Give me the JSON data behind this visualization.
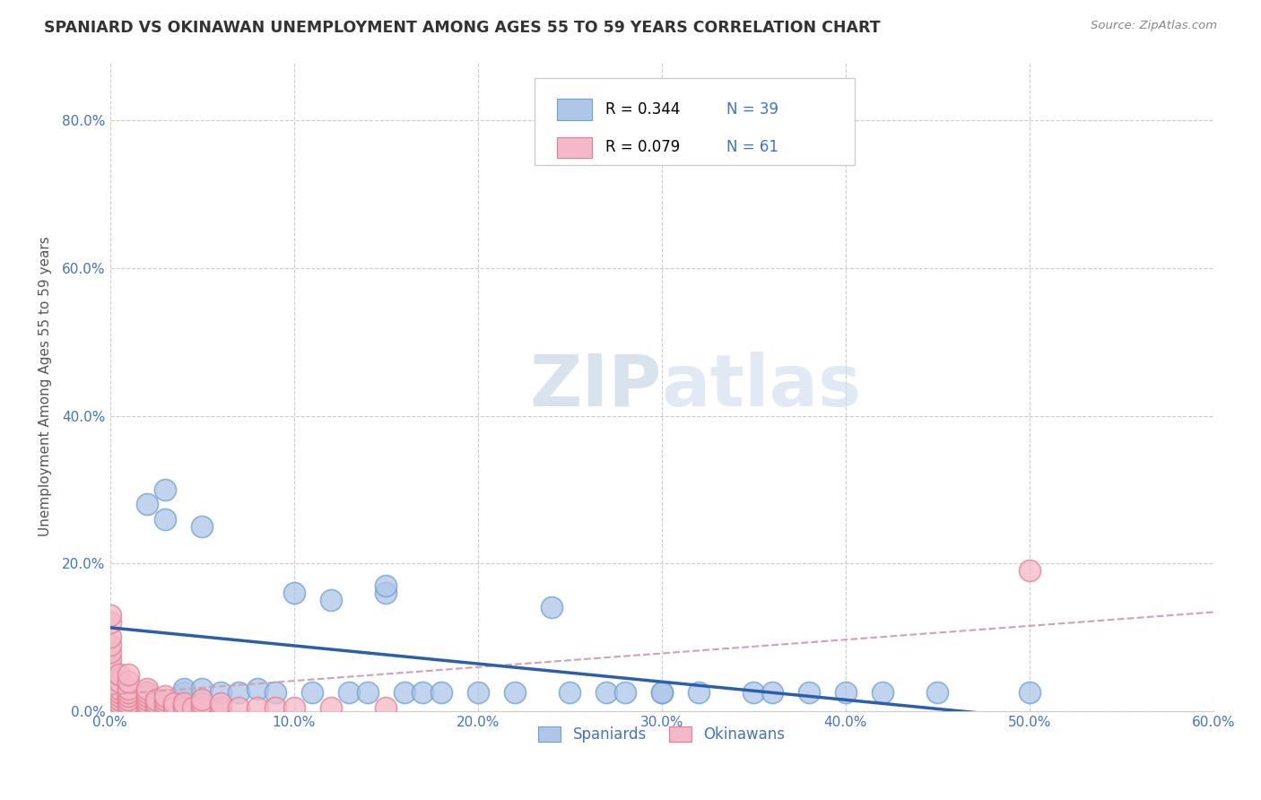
{
  "title": "SPANIARD VS OKINAWAN UNEMPLOYMENT AMONG AGES 55 TO 59 YEARS CORRELATION CHART",
  "source": "Source: ZipAtlas.com",
  "ylabel": "Unemployment Among Ages 55 to 59 years",
  "xlim": [
    0.0,
    0.6
  ],
  "ylim": [
    0.0,
    0.88
  ],
  "spaniards_R": 0.344,
  "spaniards_N": 39,
  "okinawans_R": 0.079,
  "okinawans_N": 61,
  "spaniard_color": "#aec6e8",
  "okinawan_color": "#f4b8c8",
  "spaniard_edge_color": "#6b9fd4",
  "okinawan_edge_color": "#e08090",
  "spaniard_line_color": "#2b5fad",
  "okinawan_line_color": "#d4a0b0",
  "legend_label_spaniards": "Spaniards",
  "legend_label_okinawans": "Okinawans",
  "background_color": "#ffffff",
  "grid_color": "#cccccc",
  "title_color": "#333333",
  "axis_label_color": "#555555",
  "tick_color": "#4472c4",
  "r_n_color": "#4472c4",
  "spaniards_x": [
    0.01,
    0.02,
    0.02,
    0.03,
    0.03,
    0.04,
    0.04,
    0.05,
    0.05,
    0.06,
    0.07,
    0.08,
    0.09,
    0.1,
    0.11,
    0.12,
    0.13,
    0.14,
    0.15,
    0.15,
    0.16,
    0.17,
    0.18,
    0.2,
    0.22,
    0.24,
    0.25,
    0.27,
    0.28,
    0.3,
    0.3,
    0.32,
    0.35,
    0.36,
    0.38,
    0.4,
    0.42,
    0.45,
    0.5
  ],
  "spaniards_y": [
    0.02,
    0.025,
    0.28,
    0.26,
    0.3,
    0.025,
    0.03,
    0.03,
    0.25,
    0.025,
    0.025,
    0.03,
    0.025,
    0.16,
    0.025,
    0.15,
    0.025,
    0.025,
    0.16,
    0.17,
    0.025,
    0.025,
    0.025,
    0.025,
    0.025,
    0.14,
    0.025,
    0.025,
    0.025,
    0.025,
    0.025,
    0.025,
    0.025,
    0.025,
    0.025,
    0.025,
    0.025,
    0.025,
    0.025
  ],
  "okinawans_x": [
    0.0,
    0.0,
    0.0,
    0.0,
    0.0,
    0.0,
    0.0,
    0.0,
    0.0,
    0.0,
    0.0,
    0.0,
    0.0,
    0.0,
    0.0,
    0.005,
    0.005,
    0.005,
    0.005,
    0.005,
    0.005,
    0.005,
    0.005,
    0.01,
    0.01,
    0.01,
    0.01,
    0.01,
    0.01,
    0.01,
    0.01,
    0.02,
    0.02,
    0.02,
    0.02,
    0.02,
    0.02,
    0.025,
    0.025,
    0.025,
    0.03,
    0.03,
    0.03,
    0.03,
    0.035,
    0.035,
    0.04,
    0.04,
    0.045,
    0.05,
    0.05,
    0.05,
    0.06,
    0.06,
    0.07,
    0.08,
    0.09,
    0.1,
    0.12,
    0.15,
    0.5
  ],
  "okinawans_y": [
    0.005,
    0.01,
    0.015,
    0.02,
    0.025,
    0.03,
    0.04,
    0.05,
    0.06,
    0.07,
    0.08,
    0.09,
    0.1,
    0.12,
    0.13,
    0.005,
    0.01,
    0.015,
    0.02,
    0.025,
    0.03,
    0.04,
    0.05,
    0.005,
    0.01,
    0.015,
    0.02,
    0.025,
    0.03,
    0.04,
    0.05,
    0.005,
    0.01,
    0.015,
    0.02,
    0.025,
    0.03,
    0.005,
    0.01,
    0.015,
    0.005,
    0.01,
    0.015,
    0.02,
    0.005,
    0.01,
    0.005,
    0.01,
    0.005,
    0.005,
    0.01,
    0.015,
    0.005,
    0.01,
    0.005,
    0.005,
    0.005,
    0.005,
    0.005,
    0.005,
    0.19
  ]
}
